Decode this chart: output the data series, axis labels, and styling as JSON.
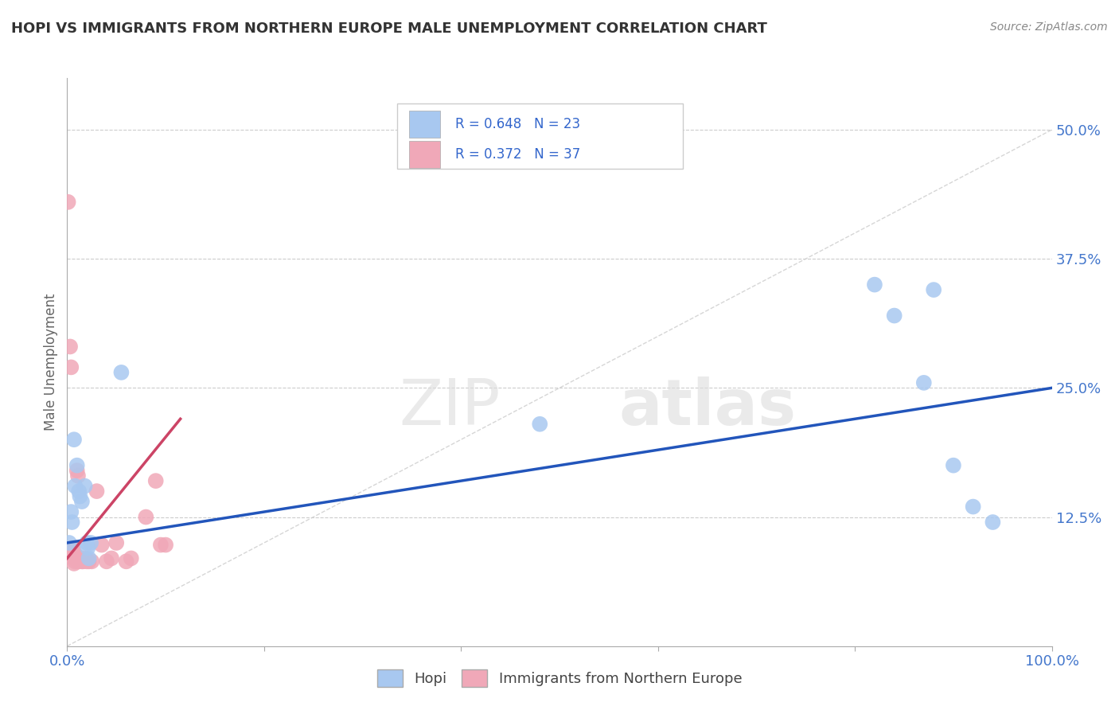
{
  "title": "HOPI VS IMMIGRANTS FROM NORTHERN EUROPE MALE UNEMPLOYMENT CORRELATION CHART",
  "source": "Source: ZipAtlas.com",
  "ylabel": "Male Unemployment",
  "yticks": [
    "50.0%",
    "37.5%",
    "25.0%",
    "12.5%"
  ],
  "ytick_vals": [
    0.5,
    0.375,
    0.25,
    0.125
  ],
  "xlim": [
    0.0,
    1.0
  ],
  "ylim": [
    0.0,
    0.55
  ],
  "hopi_color": "#A8C8F0",
  "immigrant_color": "#F0A8B8",
  "hopi_line_color": "#2255BB",
  "immigrant_line_color": "#CC4466",
  "diagonal_color": "#CCCCCC",
  "watermark_zip": "ZIP",
  "watermark_atlas": "atlas",
  "hopi_points": [
    [
      0.002,
      0.1
    ],
    [
      0.004,
      0.13
    ],
    [
      0.005,
      0.12
    ],
    [
      0.007,
      0.2
    ],
    [
      0.008,
      0.155
    ],
    [
      0.01,
      0.175
    ],
    [
      0.012,
      0.15
    ],
    [
      0.013,
      0.145
    ],
    [
      0.015,
      0.14
    ],
    [
      0.018,
      0.155
    ],
    [
      0.02,
      0.1
    ],
    [
      0.021,
      0.095
    ],
    [
      0.022,
      0.085
    ],
    [
      0.024,
      0.1
    ],
    [
      0.055,
      0.265
    ],
    [
      0.48,
      0.215
    ],
    [
      0.82,
      0.35
    ],
    [
      0.84,
      0.32
    ],
    [
      0.87,
      0.255
    ],
    [
      0.88,
      0.345
    ],
    [
      0.9,
      0.175
    ],
    [
      0.92,
      0.135
    ],
    [
      0.94,
      0.12
    ]
  ],
  "immigrant_points": [
    [
      0.001,
      0.43
    ],
    [
      0.003,
      0.29
    ],
    [
      0.004,
      0.27
    ],
    [
      0.004,
      0.095
    ],
    [
      0.005,
      0.095
    ],
    [
      0.006,
      0.095
    ],
    [
      0.006,
      0.09
    ],
    [
      0.006,
      0.088
    ],
    [
      0.007,
      0.09
    ],
    [
      0.007,
      0.088
    ],
    [
      0.007,
      0.085
    ],
    [
      0.007,
      0.08
    ],
    [
      0.008,
      0.088
    ],
    [
      0.008,
      0.085
    ],
    [
      0.008,
      0.082
    ],
    [
      0.009,
      0.088
    ],
    [
      0.009,
      0.085
    ],
    [
      0.01,
      0.17
    ],
    [
      0.011,
      0.165
    ],
    [
      0.012,
      0.082
    ],
    [
      0.015,
      0.082
    ],
    [
      0.016,
      0.082
    ],
    [
      0.018,
      0.085
    ],
    [
      0.02,
      0.082
    ],
    [
      0.022,
      0.082
    ],
    [
      0.025,
      0.082
    ],
    [
      0.03,
      0.15
    ],
    [
      0.035,
      0.098
    ],
    [
      0.04,
      0.082
    ],
    [
      0.045,
      0.085
    ],
    [
      0.05,
      0.1
    ],
    [
      0.06,
      0.082
    ],
    [
      0.065,
      0.085
    ],
    [
      0.08,
      0.125
    ],
    [
      0.09,
      0.16
    ],
    [
      0.095,
      0.098
    ],
    [
      0.1,
      0.098
    ]
  ],
  "hopi_line": {
    "x0": 0.0,
    "y0": 0.1,
    "x1": 1.0,
    "y1": 0.25
  },
  "immigrant_line": {
    "x0": 0.0,
    "y0": 0.085,
    "x1": 0.115,
    "y1": 0.22
  }
}
